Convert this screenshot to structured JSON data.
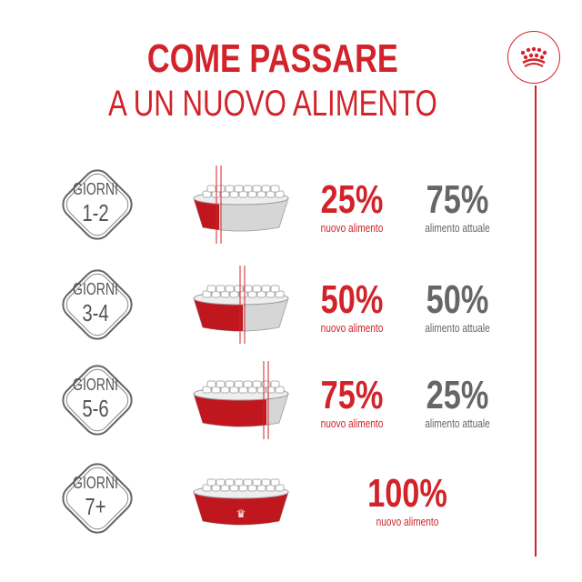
{
  "title": {
    "line1": "COME PASSARE",
    "line2": "A UN NUOVO ALIMENTO"
  },
  "colors": {
    "brand_red": "#d2232a",
    "gray": "#666666",
    "bowl_gray": "#d9d9d9"
  },
  "logo_icon": "royal-crown-icon",
  "rows": [
    {
      "giorni": "GIORNI",
      "days": "1-2",
      "new_pct": "25%",
      "new_label": "nuovo alimento",
      "old_pct": "75%",
      "old_label": "alimento attuale",
      "new_fraction": 0.25
    },
    {
      "giorni": "GIORNI",
      "days": "3-4",
      "new_pct": "50%",
      "new_label": "nuovo alimento",
      "old_pct": "50%",
      "old_label": "alimento attuale",
      "new_fraction": 0.5
    },
    {
      "giorni": "GIORNI",
      "days": "5-6",
      "new_pct": "75%",
      "new_label": "nuovo alimento",
      "old_pct": "25%",
      "old_label": "alimento attuale",
      "new_fraction": 0.75
    },
    {
      "giorni": "GIORNI",
      "days": "7+",
      "new_pct": "100%",
      "new_label": "nuovo alimento",
      "new_fraction": 1.0
    }
  ]
}
